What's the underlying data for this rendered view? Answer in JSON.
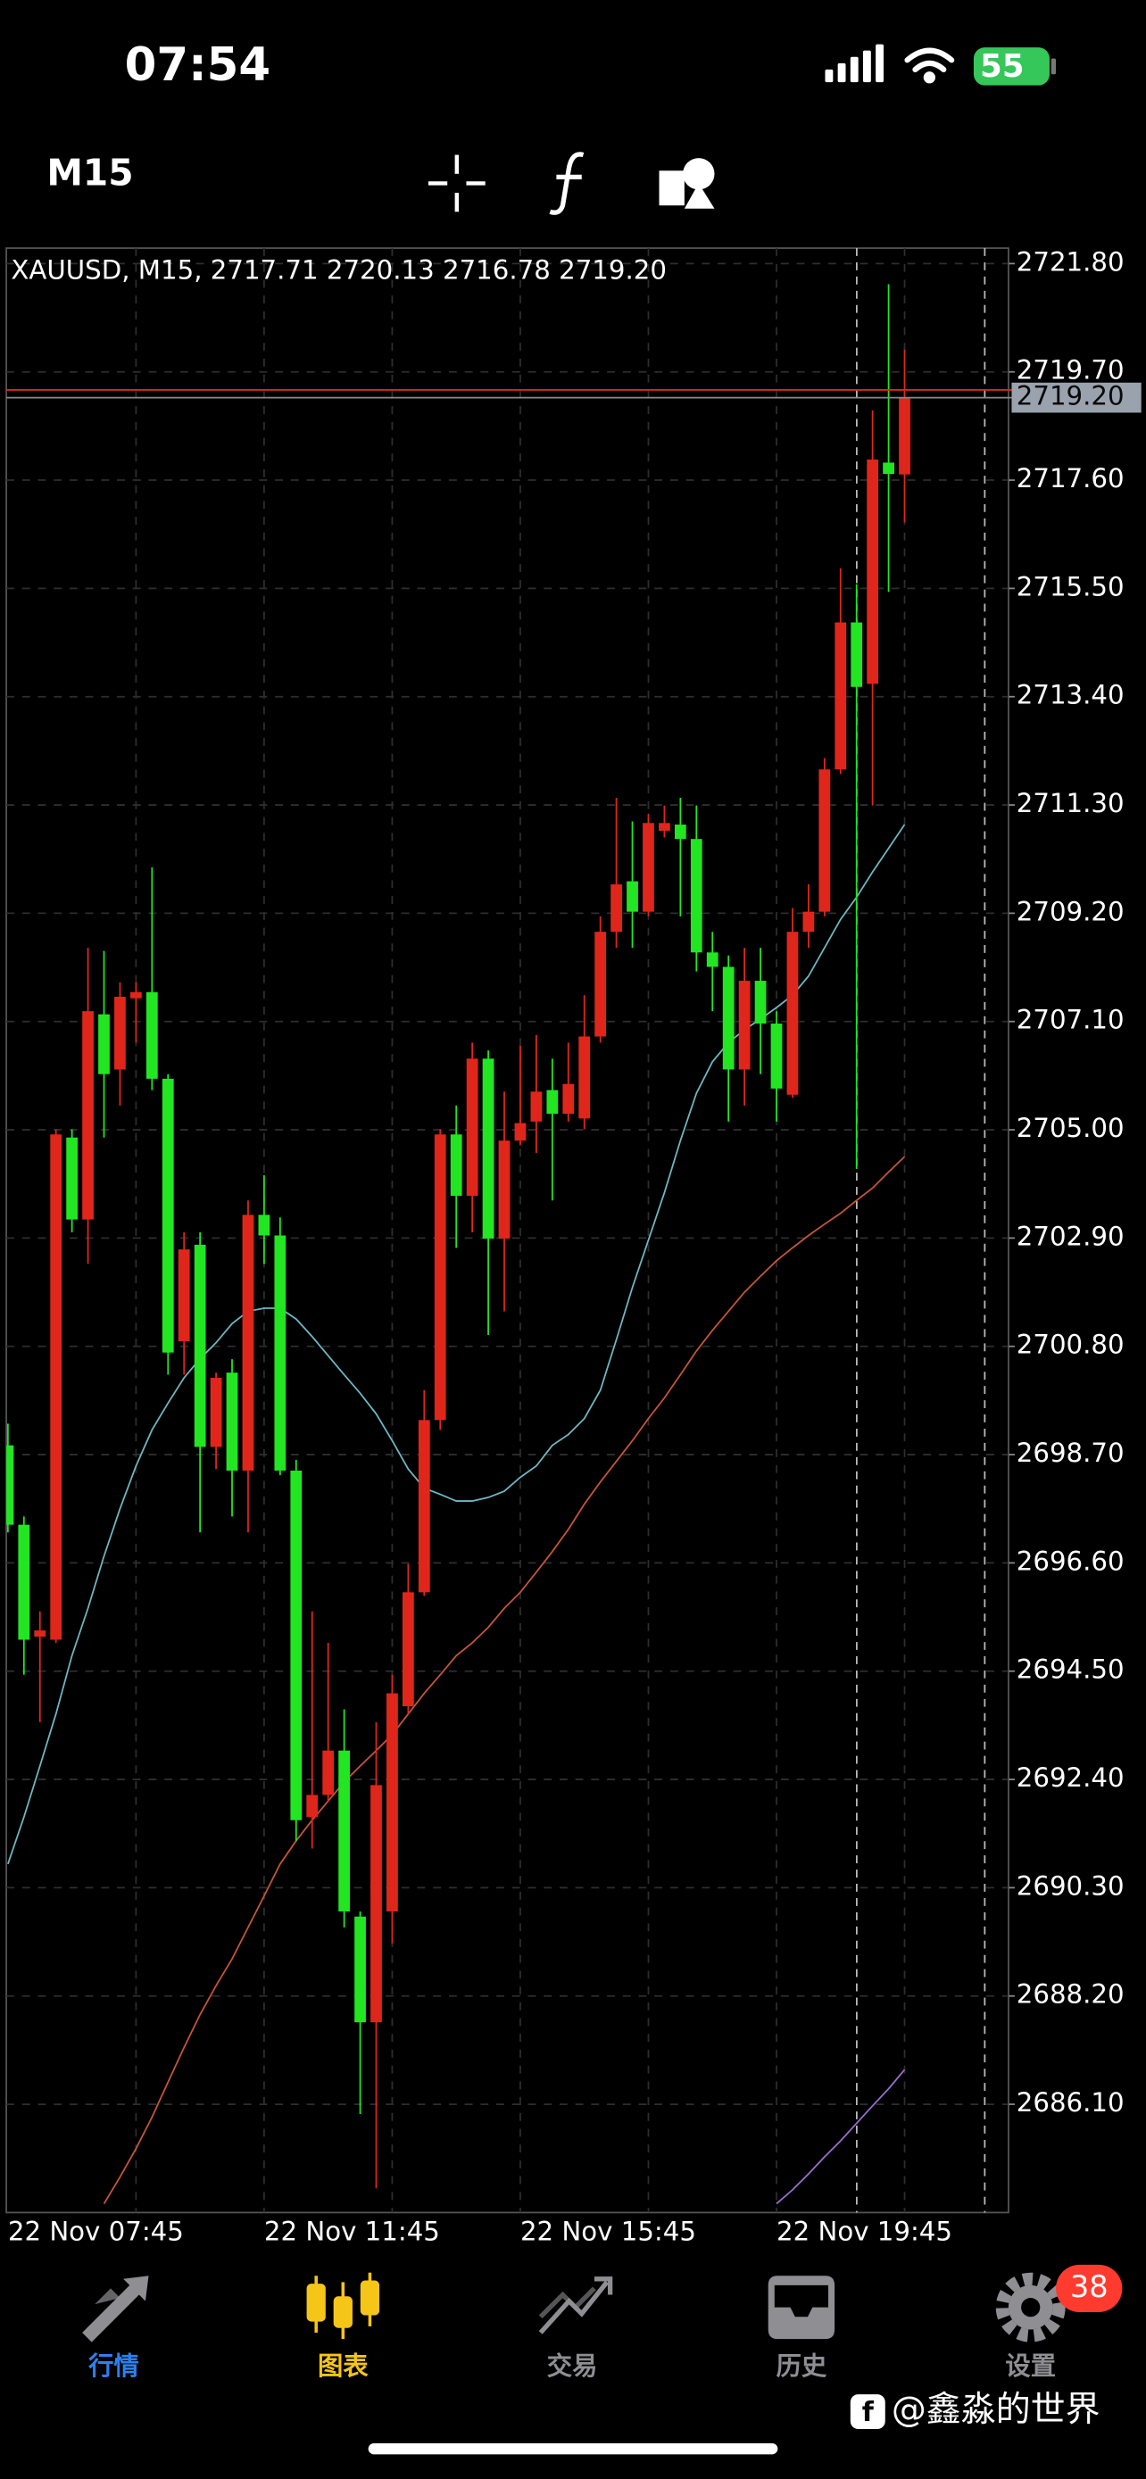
{
  "status_bar": {
    "time": "07:54",
    "battery": "55"
  },
  "toolbar": {
    "timeframe": "M15"
  },
  "chart_data": {
    "type": "candlestick",
    "title": "XAUUSD, M15, 2717.71 2720.13 2716.78 2719.20",
    "categories": [
      "22 Nov 07:45",
      null,
      null,
      null,
      null,
      null,
      null,
      null,
      null,
      null,
      null,
      null,
      null,
      null,
      null,
      null,
      "22 Nov 11:45",
      null,
      null,
      null,
      null,
      null,
      null,
      null,
      null,
      null,
      null,
      null,
      null,
      null,
      null,
      null,
      "22 Nov 15:45",
      null,
      null,
      null,
      null,
      null,
      null,
      null,
      null,
      null,
      null,
      null,
      null,
      null,
      null,
      null,
      "22 Nov 19:45",
      null,
      null,
      null,
      null,
      null,
      null,
      null,
      null
    ],
    "open": [
      2698.88,
      2697.34,
      2695.17,
      2695.11,
      2704.85,
      2703.26,
      2707.24,
      2706.17,
      2707.55,
      2707.67,
      2705.99,
      2700.9,
      2702.77,
      2698.85,
      2700.29,
      2698.39,
      2703.35,
      2702.95,
      2698.39,
      2691.67,
      2692.1,
      2692.96,
      2689.74,
      2687.69,
      2689.84,
      2693.82,
      2696.03,
      2699.37,
      2704.91,
      2703.72,
      2706.38,
      2702.89,
      2704.79,
      2705.16,
      2705.77,
      2705.31,
      2705.22,
      2706.81,
      2708.84,
      2709.82,
      2709.23,
      2710.8,
      2710.92,
      2710.64,
      2708.44,
      2708.16,
      2706.17,
      2707.89,
      2707.06,
      2705.68,
      2708.84,
      2709.23,
      2711.99,
      2714.84,
      2713.65,
      2717.94,
      2717.71
    ],
    "high": [
      2699.3,
      2697.5,
      2695.66,
      2705.01,
      2705.01,
      2708.53,
      2708.47,
      2707.86,
      2707.86,
      2710.09,
      2706.08,
      2703.01,
      2703.01,
      2700.29,
      2700.55,
      2703.63,
      2704.12,
      2703.3,
      2698.6,
      2695.66,
      2695.05,
      2693.76,
      2689.84,
      2693.51,
      2694.43,
      2696.58,
      2699.95,
      2705.01,
      2705.47,
      2706.69,
      2706.54,
      2705.74,
      2706.63,
      2706.84,
      2706.38,
      2706.69,
      2707.61,
      2709.14,
      2711.44,
      2710.98,
      2711.13,
      2711.29,
      2711.44,
      2711.29,
      2708.84,
      2708.38,
      2708.53,
      2708.53,
      2707.3,
      2709.3,
      2709.76,
      2712.21,
      2715.89,
      2715.58,
      2718.95,
      2721.4,
      2720.13
    ],
    "low": [
      2697.19,
      2694.43,
      2693.51,
      2695.05,
      2703.01,
      2702.4,
      2704.85,
      2705.47,
      2706.69,
      2705.77,
      2700.25,
      2700.25,
      2697.19,
      2698.42,
      2697.5,
      2697.19,
      2702.4,
      2698.3,
      2691.21,
      2691.06,
      2691.98,
      2689.53,
      2685.91,
      2684.47,
      2689.22,
      2693.67,
      2695.96,
      2699.18,
      2702.71,
      2703.01,
      2701.02,
      2701.48,
      2704.7,
      2704.55,
      2703.63,
      2705.16,
      2705.01,
      2706.69,
      2708.53,
      2708.53,
      2709.14,
      2710.67,
      2709.14,
      2708.07,
      2707.3,
      2705.16,
      2705.47,
      2706.08,
      2705.16,
      2705.62,
      2708.53,
      2709.14,
      2711.9,
      2704.24,
      2711.29,
      2715.43,
      2716.78
    ],
    "close": [
      2697.34,
      2695.11,
      2695.29,
      2704.91,
      2703.26,
      2707.3,
      2706.08,
      2707.58,
      2707.67,
      2705.99,
      2700.68,
      2702.68,
      2698.85,
      2700.19,
      2698.39,
      2703.35,
      2702.95,
      2698.39,
      2691.61,
      2692.1,
      2692.96,
      2689.84,
      2687.69,
      2692.29,
      2694.07,
      2696.03,
      2699.37,
      2704.91,
      2703.72,
      2706.38,
      2702.89,
      2704.79,
      2705.13,
      2705.74,
      2705.31,
      2705.89,
      2706.81,
      2708.84,
      2709.76,
      2709.23,
      2710.95,
      2710.95,
      2710.64,
      2708.44,
      2708.16,
      2706.17,
      2707.89,
      2707.06,
      2705.8,
      2708.84,
      2709.23,
      2711.99,
      2714.84,
      2713.59,
      2718.0,
      2717.72,
      2719.2
    ],
    "up_color": "#e0261b",
    "down_color": "#22e622",
    "moving_averages": [
      {
        "color": "#6fb7c4",
        "values": [
          2690.76,
          2691.67,
          2692.66,
          2693.67,
          2694.8,
          2695.72,
          2696.73,
          2697.65,
          2698.48,
          2699.18,
          2699.7,
          2700.19,
          2700.56,
          2700.87,
          2701.24,
          2701.48,
          2701.54,
          2701.54,
          2701.33,
          2700.99,
          2700.62,
          2700.25,
          2699.89,
          2699.49,
          2698.97,
          2698.42,
          2698.05,
          2697.93,
          2697.8,
          2697.8,
          2697.87,
          2697.99,
          2698.26,
          2698.48,
          2698.88,
          2699.09,
          2699.4,
          2699.95,
          2700.93,
          2701.94,
          2702.86,
          2703.78,
          2704.79,
          2705.71,
          2706.32,
          2706.69,
          2706.94,
          2707.15,
          2707.37,
          2707.61,
          2707.98,
          2708.53,
          2709.08,
          2709.51,
          2710.0,
          2710.46,
          2710.92
        ]
      },
      {
        "color": "#c8553a",
        "values": [
          null,
          null,
          null,
          null,
          null,
          null,
          2684.17,
          2684.69,
          2685.24,
          2685.85,
          2686.53,
          2687.2,
          2687.84,
          2688.4,
          2688.92,
          2689.53,
          2690.14,
          2690.76,
          2691.21,
          2691.61,
          2691.98,
          2692.35,
          2692.66,
          2692.96,
          2693.27,
          2693.67,
          2694.07,
          2694.43,
          2694.8,
          2695.05,
          2695.35,
          2695.72,
          2696.03,
          2696.42,
          2696.82,
          2697.25,
          2697.74,
          2698.17,
          2698.57,
          2698.97,
          2699.4,
          2699.8,
          2700.25,
          2700.71,
          2701.11,
          2701.48,
          2701.85,
          2702.16,
          2702.46,
          2702.71,
          2702.95,
          2703.17,
          2703.38,
          2703.63,
          2703.87,
          2704.18,
          2704.48
        ]
      },
      {
        "color": "#9a6fd0",
        "values": [
          null,
          null,
          null,
          null,
          null,
          null,
          null,
          null,
          null,
          null,
          null,
          null,
          null,
          null,
          null,
          null,
          null,
          null,
          null,
          null,
          null,
          null,
          null,
          null,
          null,
          null,
          null,
          null,
          null,
          null,
          null,
          null,
          null,
          null,
          null,
          null,
          null,
          null,
          null,
          null,
          null,
          null,
          null,
          null,
          null,
          null,
          null,
          null,
          2684.17,
          2684.44,
          2684.75,
          2685.08,
          2685.39,
          2685.73,
          2686.07,
          2686.4,
          2686.77
        ]
      }
    ],
    "ylim": [
      2684.0,
      2722.1
    ],
    "yticks": [
      {
        "value": 2721.8,
        "label": "2721.80"
      },
      {
        "value": 2719.7,
        "label": "2719.70"
      },
      {
        "value": 2717.6,
        "label": "2717.60"
      },
      {
        "value": 2715.5,
        "label": "2715.50"
      },
      {
        "value": 2713.4,
        "label": "2713.40"
      },
      {
        "value": 2711.3,
        "label": "2711.30"
      },
      {
        "value": 2709.2,
        "label": "2709.20"
      },
      {
        "value": 2707.1,
        "label": "2707.10"
      },
      {
        "value": 2705.0,
        "label": "2705.00"
      },
      {
        "value": 2702.9,
        "label": "2702.90"
      },
      {
        "value": 2700.8,
        "label": "2700.80"
      },
      {
        "value": 2698.7,
        "label": "2698.70"
      },
      {
        "value": 2696.6,
        "label": "2696.60"
      },
      {
        "value": 2694.5,
        "label": "2694.50"
      },
      {
        "value": 2692.4,
        "label": "2692.40"
      },
      {
        "value": 2690.3,
        "label": "2690.30"
      },
      {
        "value": 2688.2,
        "label": "2688.20"
      },
      {
        "value": 2686.1,
        "label": "2686.10"
      }
    ],
    "current_price": {
      "value": 2719.2,
      "label": "2719.20"
    },
    "ask": 2719.35,
    "grid": true
  },
  "tab_bar": {
    "tabs": [
      {
        "label": "行情"
      },
      {
        "label": "图表"
      },
      {
        "label": "交易"
      },
      {
        "label": "历史"
      },
      {
        "label": "设置"
      }
    ],
    "badge": "38"
  },
  "watermark": "@鑫淼的世界"
}
